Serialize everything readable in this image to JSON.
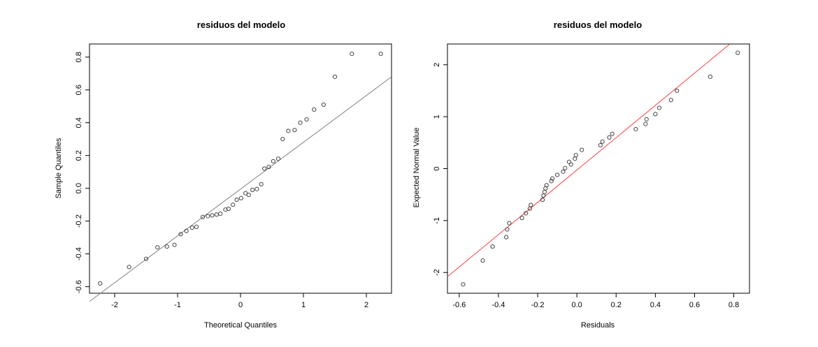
{
  "chart_data": [
    {
      "type": "scatter",
      "title": "residuos del modelo",
      "xlabel": "Theoretical Quantiles",
      "ylabel": "Sample Quantiles",
      "xlim": [
        -2.4,
        2.4
      ],
      "ylim": [
        -0.64,
        0.88
      ],
      "xticks": [
        -2,
        -1,
        0,
        1,
        2
      ],
      "yticks": [
        -0.6,
        -0.4,
        -0.2,
        0.0,
        0.2,
        0.4,
        0.6,
        0.8
      ],
      "xtick_labels": [
        "-2",
        "-1",
        "0",
        "1",
        "2"
      ],
      "ytick_labels": [
        "-0.6",
        "-0.4",
        "-0.2",
        "0.0",
        "0.2",
        "0.4",
        "0.6",
        "0.8"
      ],
      "grid": false,
      "reference_line": {
        "x": [
          -2.4,
          2.4
        ],
        "y": [
          -0.69,
          0.68
        ],
        "color": "#808080"
      },
      "point_color": "#444444",
      "points": {
        "x": [
          -2.23,
          -1.77,
          -1.5,
          -1.32,
          -1.17,
          -1.05,
          -0.95,
          -0.86,
          -0.77,
          -0.7,
          -0.6,
          -0.52,
          -0.45,
          -0.38,
          -0.32,
          -0.24,
          -0.19,
          -0.12,
          -0.06,
          0.01,
          0.08,
          0.13,
          0.19,
          0.26,
          0.33,
          0.38,
          0.45,
          0.52,
          0.6,
          0.67,
          0.76,
          0.86,
          0.95,
          1.05,
          1.17,
          1.32,
          1.5,
          1.77,
          2.23
        ],
        "y": [
          -0.58,
          -0.48,
          -0.43,
          -0.36,
          -0.355,
          -0.345,
          -0.28,
          -0.26,
          -0.24,
          -0.235,
          -0.175,
          -0.17,
          -0.165,
          -0.16,
          -0.155,
          -0.13,
          -0.125,
          -0.1,
          -0.07,
          -0.06,
          -0.03,
          -0.04,
          -0.01,
          -0.005,
          0.025,
          0.12,
          0.13,
          0.165,
          0.18,
          0.3,
          0.35,
          0.355,
          0.4,
          0.42,
          0.48,
          0.51,
          0.68,
          0.82,
          0.82
        ]
      }
    },
    {
      "type": "scatter",
      "title": "residuos del modelo",
      "xlabel": "Residuals",
      "ylabel": "Expected Normal Value",
      "xlim": [
        -0.66,
        0.88
      ],
      "ylim": [
        -2.4,
        2.4
      ],
      "xticks": [
        -0.6,
        -0.4,
        -0.2,
        0.0,
        0.2,
        0.4,
        0.6,
        0.8
      ],
      "yticks": [
        -2,
        -1,
        0,
        1,
        2
      ],
      "xtick_labels": [
        "-0.6",
        "-0.4",
        "-0.2",
        "0.0",
        "0.2",
        "0.4",
        "0.6",
        "0.8"
      ],
      "ytick_labels": [
        "-2",
        "-1",
        "0",
        "1",
        "2"
      ],
      "grid": false,
      "reference_line": {
        "x": [
          -0.66,
          0.78
        ],
        "y": [
          -2.08,
          2.4
        ],
        "color": "#ff4040"
      },
      "point_color": "#444444",
      "points": {
        "x": [
          -0.58,
          -0.48,
          -0.43,
          -0.36,
          -0.355,
          -0.345,
          -0.28,
          -0.26,
          -0.24,
          -0.235,
          -0.175,
          -0.17,
          -0.165,
          -0.16,
          -0.155,
          -0.13,
          -0.125,
          -0.1,
          -0.07,
          -0.06,
          -0.03,
          -0.04,
          -0.01,
          -0.005,
          0.025,
          0.12,
          0.13,
          0.165,
          0.18,
          0.3,
          0.35,
          0.355,
          0.4,
          0.42,
          0.48,
          0.51,
          0.68,
          0.82
        ],
        "y": [
          -2.23,
          -1.77,
          -1.5,
          -1.32,
          -1.17,
          -1.05,
          -0.95,
          -0.86,
          -0.77,
          -0.7,
          -0.6,
          -0.52,
          -0.45,
          -0.38,
          -0.32,
          -0.24,
          -0.19,
          -0.12,
          -0.06,
          0.01,
          0.08,
          0.13,
          0.19,
          0.26,
          0.36,
          0.45,
          0.52,
          0.6,
          0.67,
          0.76,
          0.86,
          0.95,
          1.05,
          1.17,
          1.32,
          1.5,
          1.77,
          2.23
        ]
      }
    }
  ]
}
